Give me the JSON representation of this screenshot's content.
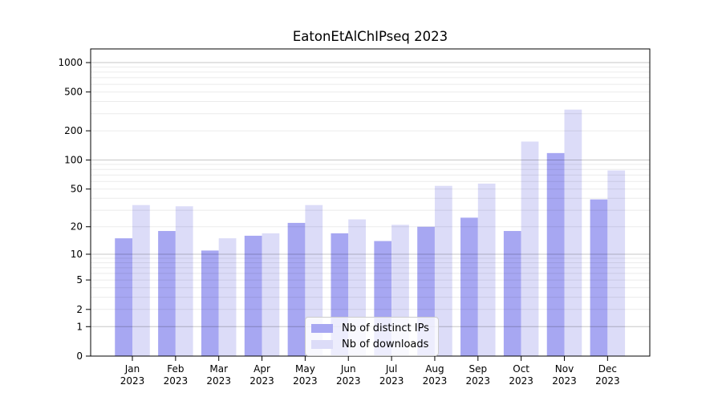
{
  "chart_data": {
    "type": "bar",
    "title": "EatonEtAlChIPseq 2023",
    "x_tick_months": [
      "Jan",
      "Feb",
      "Mar",
      "Apr",
      "May",
      "Jun",
      "Jul",
      "Aug",
      "Sep",
      "Oct",
      "Nov",
      "Dec"
    ],
    "x_tick_year": "2023",
    "series": [
      {
        "name": "Nb of distinct IPs",
        "color": "#a7a7f2",
        "values": [
          15,
          18,
          11,
          16,
          22,
          17,
          14,
          20,
          25,
          18,
          118,
          39
        ]
      },
      {
        "name": "Nb of downloads",
        "color": "#dcdcf8",
        "values": [
          34,
          33,
          15,
          17,
          34,
          24,
          21,
          54,
          57,
          155,
          330,
          78
        ]
      }
    ],
    "yscale": "log1p",
    "yticks": [
      0,
      1,
      2,
      5,
      10,
      20,
      50,
      100,
      200,
      500,
      1000
    ],
    "ylim": [
      0,
      1380
    ],
    "grid": "horizontal",
    "legend_position": "inside-bottom-center"
  }
}
